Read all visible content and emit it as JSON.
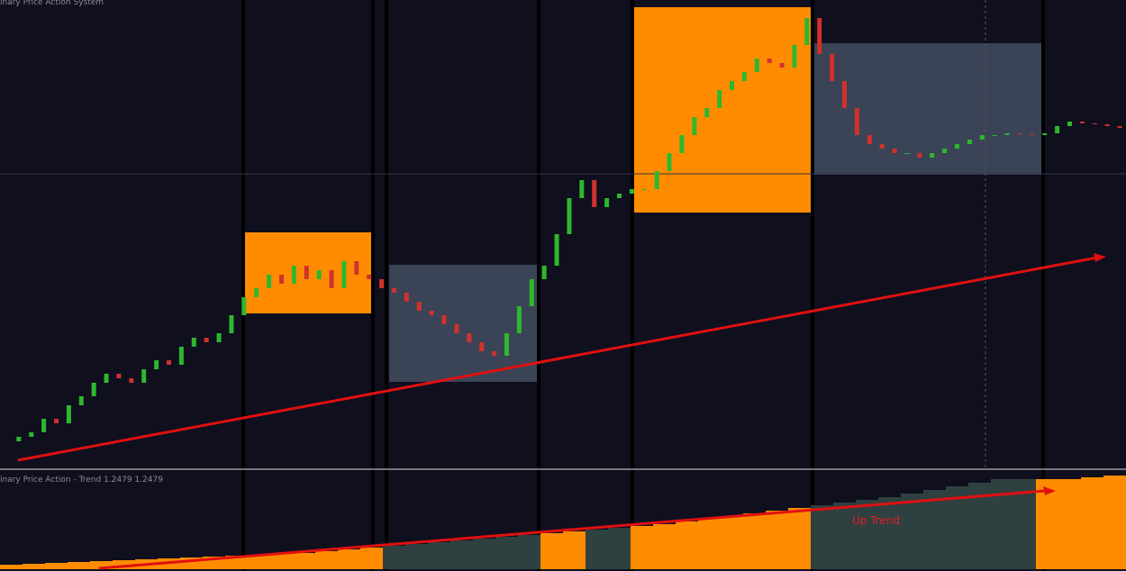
{
  "chart_data": [
    {
      "type": "candlestick",
      "title": "inary Price Action System",
      "up_color": "#2db82d",
      "down_color": "#d0312d",
      "ylim": [
        0,
        520
      ],
      "close": [
        30,
        35,
        40,
        55,
        50,
        70,
        80,
        95,
        105,
        100,
        95,
        110,
        120,
        115,
        135,
        145,
        140,
        150,
        170,
        190,
        200,
        215,
        205,
        225,
        210,
        220,
        200,
        230,
        215,
        210,
        200,
        195,
        185,
        175,
        170,
        160,
        150,
        140,
        130,
        125,
        150,
        180,
        210,
        225,
        260,
        300,
        320,
        290,
        300,
        305,
        310,
        310,
        330,
        350,
        370,
        390,
        400,
        420,
        430,
        440,
        455,
        450,
        445,
        470,
        500,
        460,
        430,
        400,
        370,
        360,
        355,
        350,
        350,
        345,
        350,
        355,
        360,
        365,
        370,
        370,
        372,
        371,
        370,
        372,
        380,
        385,
        383,
        382,
        380,
        378
      ]
    },
    {
      "type": "bar",
      "title": "inary Price Action - Trend 1.2479 1.2479",
      "annotation": "Up Trend",
      "ylim": [
        0,
        110
      ],
      "values": [
        5,
        6,
        7,
        8,
        9,
        10,
        11,
        12,
        13,
        14,
        15,
        16,
        17,
        18,
        20,
        22,
        24,
        26,
        28,
        30,
        32,
        34,
        36,
        38,
        40,
        42,
        44,
        46,
        48,
        50,
        53,
        56,
        59,
        62,
        65,
        68,
        71,
        74,
        77,
        80,
        84,
        88,
        92,
        96,
        100,
        100,
        100,
        100,
        102,
        104
      ],
      "colors": [
        "#ff8c00",
        "#ff8c00",
        "#ff8c00",
        "#ff8c00",
        "#ff8c00",
        "#ff8c00",
        "#ff8c00",
        "#ff8c00",
        "#ff8c00",
        "#ff8c00",
        "#ff8c00",
        "#ff8c00",
        "#ff8c00",
        "#ff8c00",
        "#ff8c00",
        "#ff8c00",
        "#ff8c00",
        "#2f4040",
        "#2f4040",
        "#2f4040",
        "#2f4040",
        "#2f4040",
        "#2f4040",
        "#2f4040",
        "#ff8c00",
        "#ff8c00",
        "#2f4040",
        "#2f4040",
        "#ff8c00",
        "#ff8c00",
        "#ff8c00",
        "#ff8c00",
        "#ff8c00",
        "#ff8c00",
        "#ff8c00",
        "#ff8c00",
        "#2f4040",
        "#2f4040",
        "#2f4040",
        "#2f4040",
        "#2f4040",
        "#2f4040",
        "#2f4040",
        "#2f4040",
        "#2f4040",
        "#2f4040",
        "#ff8c00",
        "#ff8c00",
        "#ff8c00",
        "#ff8c00"
      ]
    }
  ]
}
